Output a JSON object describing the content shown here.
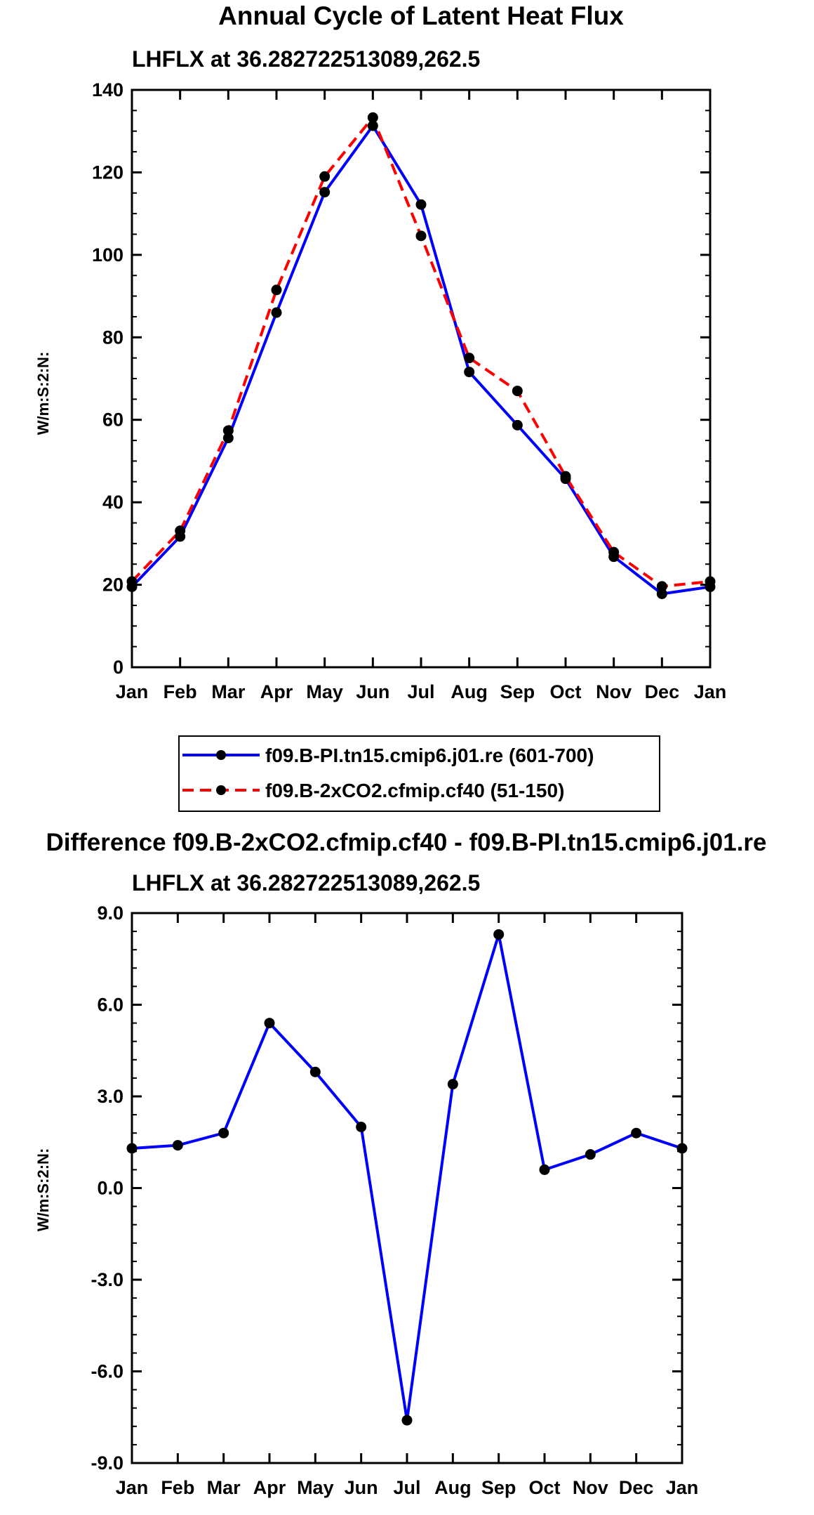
{
  "chart_data": [
    {
      "type": "line",
      "title": "Annual Cycle of Latent Heat Flux",
      "subtitle": "LHFLX at 36.282722513089,262.5",
      "xlabel": "",
      "ylabel": "W/m:S:2:N:",
      "categories": [
        "Jan",
        "Feb",
        "Mar",
        "Apr",
        "May",
        "Jun",
        "Jul",
        "Aug",
        "Sep",
        "Oct",
        "Nov",
        "Dec",
        "Jan"
      ],
      "ylim": [
        0,
        140
      ],
      "yticks": [
        "0",
        "20",
        "40",
        "60",
        "80",
        "100",
        "120",
        "140"
      ],
      "series": [
        {
          "name": "f09.B-PI.tn15.cmip6.j01.re (601-700)",
          "color": "#0000ff",
          "style": "solid",
          "values": [
            19.5,
            31.7,
            55.6,
            86.0,
            115.2,
            131.3,
            112.2,
            71.6,
            58.7,
            45.7,
            26.8,
            17.8,
            19.5
          ]
        },
        {
          "name": "f09.B-2xCO2.cfmip.cf40 (51-150)",
          "color": "#ff0000",
          "style": "dashed",
          "values": [
            20.8,
            33.1,
            57.4,
            91.5,
            119.0,
            133.3,
            104.6,
            75.0,
            67.0,
            46.3,
            27.9,
            19.6,
            20.8
          ]
        }
      ]
    },
    {
      "type": "line",
      "title": "Difference f09.B-2xCO2.cfmip.cf40 - f09.B-PI.tn15.cmip6.j01.re",
      "subtitle": "LHFLX at 36.282722513089,262.5",
      "xlabel": "",
      "ylabel": "W/m:S:2:N:",
      "categories": [
        "Jan",
        "Feb",
        "Mar",
        "Apr",
        "May",
        "Jun",
        "Jul",
        "Aug",
        "Sep",
        "Oct",
        "Nov",
        "Dec",
        "Jan"
      ],
      "ylim": [
        -9.0,
        9.0
      ],
      "yticks": [
        "-9.0",
        "-6.0",
        "-3.0",
        "0.0",
        "3.0",
        "6.0",
        "9.0"
      ],
      "series": [
        {
          "name": "Difference",
          "color": "#0000ff",
          "style": "solid",
          "values": [
            1.3,
            1.4,
            1.8,
            5.4,
            3.8,
            2.0,
            -7.6,
            3.4,
            8.3,
            0.6,
            1.1,
            1.8,
            1.3
          ]
        }
      ]
    }
  ]
}
